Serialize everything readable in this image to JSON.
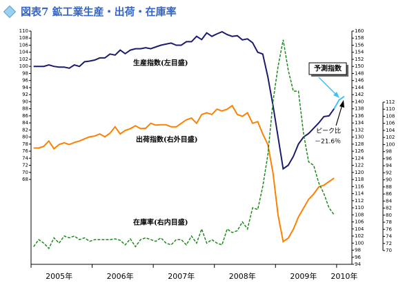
{
  "chart_data": {
    "type": "line",
    "title": "図表7 鉱工業生産・出荷・在庫率",
    "categories": [
      null,
      null,
      null,
      null,
      null,
      "2005年",
      null,
      null,
      null,
      null,
      null,
      null,
      null,
      null,
      null,
      null,
      null,
      "2006年",
      null,
      null,
      null,
      null,
      null,
      null,
      null,
      null,
      null,
      null,
      null,
      "2007年",
      null,
      null,
      null,
      null,
      null,
      null,
      null,
      null,
      null,
      null,
      null,
      "2008年",
      null,
      null,
      null,
      null,
      null,
      null,
      null,
      null,
      null,
      null,
      null,
      "2009年",
      null,
      null,
      null,
      null,
      null,
      null,
      null,
      "2010年",
      null
    ],
    "series": [
      {
        "name": "生産指数(左目盛)",
        "color": "#1a1a6e",
        "axis": "y",
        "values": [
          100,
          100,
          100,
          100.4,
          100,
          99.8,
          99.8,
          99.5,
          100.4,
          100,
          101.3,
          101.5,
          101.8,
          102.4,
          102.4,
          103.5,
          103.2,
          104.6,
          103.6,
          104.6,
          105,
          105,
          105.3,
          105,
          105.5,
          106,
          106.3,
          106.6,
          106,
          106,
          107,
          107,
          108.5,
          107.6,
          109.5,
          108.5,
          109.2,
          109.8,
          109,
          108.5,
          108.7,
          107.5,
          107.8,
          106.7,
          104,
          103.5,
          97,
          89,
          80,
          71,
          72,
          74.5,
          78,
          80,
          81,
          82.5,
          84,
          85.8,
          86,
          88,
          null,
          null,
          null
        ]
      },
      {
        "name": "予測指数",
        "color": "#40c0f0",
        "axis": "y",
        "values": [
          null,
          null,
          null,
          null,
          null,
          null,
          null,
          null,
          null,
          null,
          null,
          null,
          null,
          null,
          null,
          null,
          null,
          null,
          null,
          null,
          null,
          null,
          null,
          null,
          null,
          null,
          null,
          null,
          null,
          null,
          null,
          null,
          null,
          null,
          null,
          null,
          null,
          null,
          null,
          null,
          null,
          null,
          null,
          null,
          null,
          null,
          null,
          null,
          null,
          null,
          null,
          null,
          null,
          null,
          null,
          null,
          null,
          null,
          null,
          88,
          90.5,
          91.5,
          null
        ]
      },
      {
        "name": "出荷指数(右外目盛)",
        "color": "#ff8000",
        "axis": "y3",
        "values": [
          99,
          99,
          99.5,
          101,
          98.8,
          100,
          100.5,
          100,
          100.6,
          101,
          101.6,
          102.2,
          102.4,
          103,
          102.2,
          103.2,
          105,
          103,
          104,
          104.5,
          105.3,
          104.5,
          104.6,
          106,
          105.5,
          105.6,
          105.6,
          105,
          105,
          106,
          107,
          107.5,
          106,
          108.5,
          109,
          108.5,
          110,
          109.5,
          110,
          111,
          108.5,
          108,
          109,
          106,
          106.5,
          103,
          100,
          92,
          80,
          72.5,
          73.5,
          76,
          79.5,
          82,
          84.5,
          86,
          88,
          88.5,
          89.5,
          90.5,
          null,
          null,
          null
        ]
      },
      {
        "name": "在庫率(右内目盛)",
        "color": "#1a8a1a",
        "axis": "y2",
        "dashed": true,
        "values": [
          99,
          101,
          100,
          98.5,
          101.5,
          100,
          102,
          101.5,
          102,
          101,
          101.5,
          100.5,
          101,
          101,
          101,
          101,
          101.2,
          100.8,
          99.5,
          101.2,
          99,
          101,
          101.5,
          101,
          100.5,
          101.5,
          100,
          99.5,
          101,
          101,
          99.5,
          102,
          100,
          104,
          100,
          101,
          100,
          99.5,
          104,
          103,
          103.5,
          106,
          104,
          110,
          109.5,
          116,
          125,
          140,
          150,
          157.5,
          149,
          143,
          143,
          131,
          123,
          122,
          117,
          114,
          110,
          108,
          null,
          null,
          null
        ]
      }
    ],
    "ylim": [
      68,
      110
    ],
    "yticks": [
      68,
      70,
      72,
      74,
      76,
      78,
      80,
      82,
      84,
      86,
      88,
      90,
      92,
      94,
      96,
      98,
      100,
      102,
      104,
      106,
      108,
      110
    ],
    "y2lim": [
      94,
      160
    ],
    "y2ticks": [
      94,
      96,
      98,
      100,
      102,
      104,
      106,
      108,
      110,
      112,
      114,
      116,
      118,
      120,
      122,
      124,
      126,
      128,
      130,
      132,
      134,
      136,
      138,
      140,
      142,
      144,
      146,
      148,
      150,
      152,
      154,
      156,
      158,
      160
    ],
    "y3lim": [
      70,
      112
    ],
    "y3ticks": [
      70,
      72,
      74,
      76,
      78,
      80,
      82,
      84,
      86,
      88,
      90,
      92,
      94,
      96,
      98,
      100,
      102,
      104,
      106,
      108,
      110,
      112
    ],
    "annotations": [
      "ピーク比",
      "－21.6％"
    ]
  }
}
